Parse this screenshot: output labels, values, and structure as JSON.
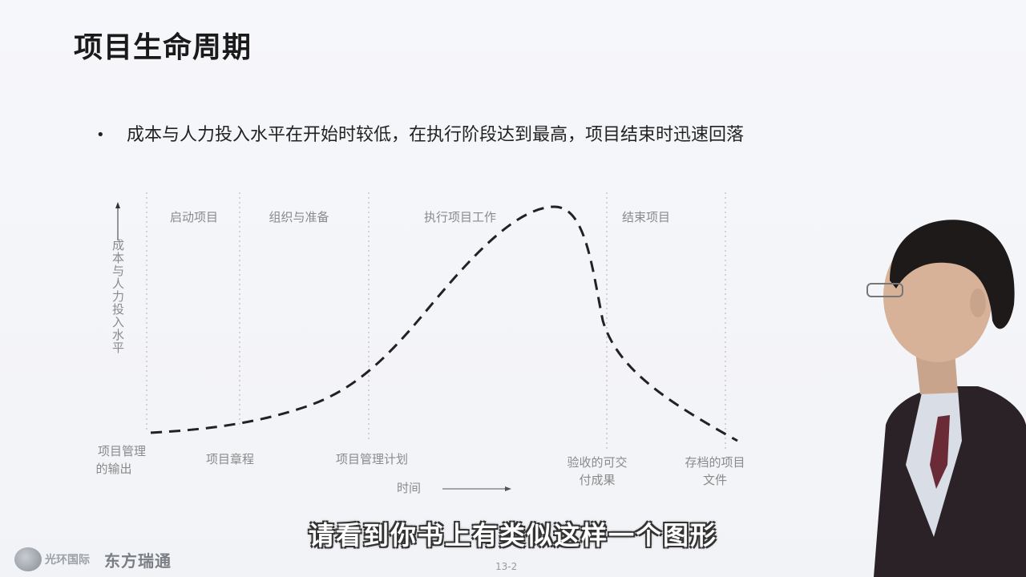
{
  "slide": {
    "title": "项目生命周期",
    "bullet": "成本与人力投入水平在开始时较低，在执行阶段达到最高，项目结束时迅速回落",
    "page_number": "13-2"
  },
  "diagram": {
    "y_axis_label": "成本与人力投入水平",
    "x_axis_label": "时间",
    "phases": [
      "启动项目",
      "组织与准备",
      "执行项目工作",
      "结束项目"
    ],
    "outputs": [
      {
        "line1": "项目管理",
        "line2": "的输出"
      },
      {
        "line1": "项目章程",
        "line2": ""
      },
      {
        "line1": "项目管理计划",
        "line2": ""
      },
      {
        "line1": "验收的可交",
        "line2": "付成果"
      },
      {
        "line1": "存档的项目",
        "line2": "文件"
      }
    ]
  },
  "subtitle": "请看到你书上有类似这样一个图形",
  "footer": {
    "logo_text_1": "光环国际",
    "logo_text_2": "东方瑞通"
  },
  "colors": {
    "curve": "#222222",
    "guide_lines": "#b0b0b0",
    "diagram_text": "#8a8a8a"
  }
}
